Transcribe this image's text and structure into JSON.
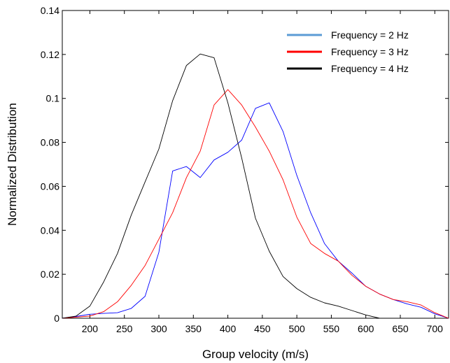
{
  "chart_data": {
    "type": "line",
    "title": "",
    "xlabel": "Group velocity (m/s)",
    "ylabel": "Normalized Distribution",
    "xlim": [
      160,
      720
    ],
    "ylim": [
      0,
      0.14
    ],
    "xticks": [
      200,
      250,
      300,
      350,
      400,
      450,
      500,
      550,
      600,
      650,
      700
    ],
    "yticks": [
      0,
      0.02,
      0.04,
      0.06,
      0.08,
      0.1,
      0.12,
      0.14
    ],
    "ytick_labels": [
      "0",
      "0.02",
      "0.04",
      "0.06",
      "0.08",
      "0.1",
      "0.12",
      "0.14"
    ],
    "grid": false,
    "legend_position": "top-right",
    "series": [
      {
        "name": "Frequency = 2 Hz",
        "line_color": "#0000ff",
        "legend_color": "#5b9bd5",
        "x": [
          160,
          180,
          200,
          220,
          240,
          260,
          280,
          300,
          320,
          340,
          360,
          380,
          400,
          420,
          440,
          460,
          480,
          500,
          520,
          540,
          560,
          580,
          600,
          620,
          640,
          660,
          680,
          700,
          720
        ],
        "y": [
          0.0,
          0.0008,
          0.0018,
          0.0022,
          0.0025,
          0.0045,
          0.01,
          0.03,
          0.067,
          0.069,
          0.064,
          0.072,
          0.0755,
          0.081,
          0.0955,
          0.098,
          0.085,
          0.065,
          0.048,
          0.034,
          0.026,
          0.0205,
          0.0145,
          0.011,
          0.0085,
          0.0065,
          0.005,
          0.002,
          0.0
        ]
      },
      {
        "name": "Frequency = 3 Hz",
        "line_color": "#ff0000",
        "legend_color": "#ff0000",
        "x": [
          160,
          180,
          200,
          220,
          240,
          260,
          280,
          300,
          320,
          340,
          360,
          380,
          400,
          420,
          440,
          460,
          480,
          500,
          520,
          540,
          560,
          580,
          600,
          620,
          640,
          660,
          680,
          700,
          720
        ],
        "y": [
          0.0,
          0.0005,
          0.001,
          0.003,
          0.0075,
          0.015,
          0.024,
          0.036,
          0.048,
          0.064,
          0.076,
          0.097,
          0.104,
          0.097,
          0.087,
          0.076,
          0.063,
          0.046,
          0.034,
          0.0295,
          0.026,
          0.0195,
          0.0145,
          0.011,
          0.0085,
          0.0075,
          0.006,
          0.0025,
          0.0
        ]
      },
      {
        "name": "Frequency = 4 Hz",
        "line_color": "#000000",
        "legend_color": "#000000",
        "x": [
          160,
          180,
          200,
          220,
          240,
          260,
          280,
          300,
          320,
          340,
          360,
          380,
          400,
          420,
          440,
          460,
          480,
          500,
          520,
          540,
          560,
          580,
          600,
          620
        ],
        "y": [
          0.0,
          0.001,
          0.0055,
          0.0165,
          0.0295,
          0.047,
          0.062,
          0.077,
          0.099,
          0.115,
          0.1202,
          0.1185,
          0.098,
          0.073,
          0.0455,
          0.0305,
          0.019,
          0.0135,
          0.0095,
          0.007,
          0.0055,
          0.0035,
          0.0015,
          0.0
        ]
      }
    ]
  }
}
